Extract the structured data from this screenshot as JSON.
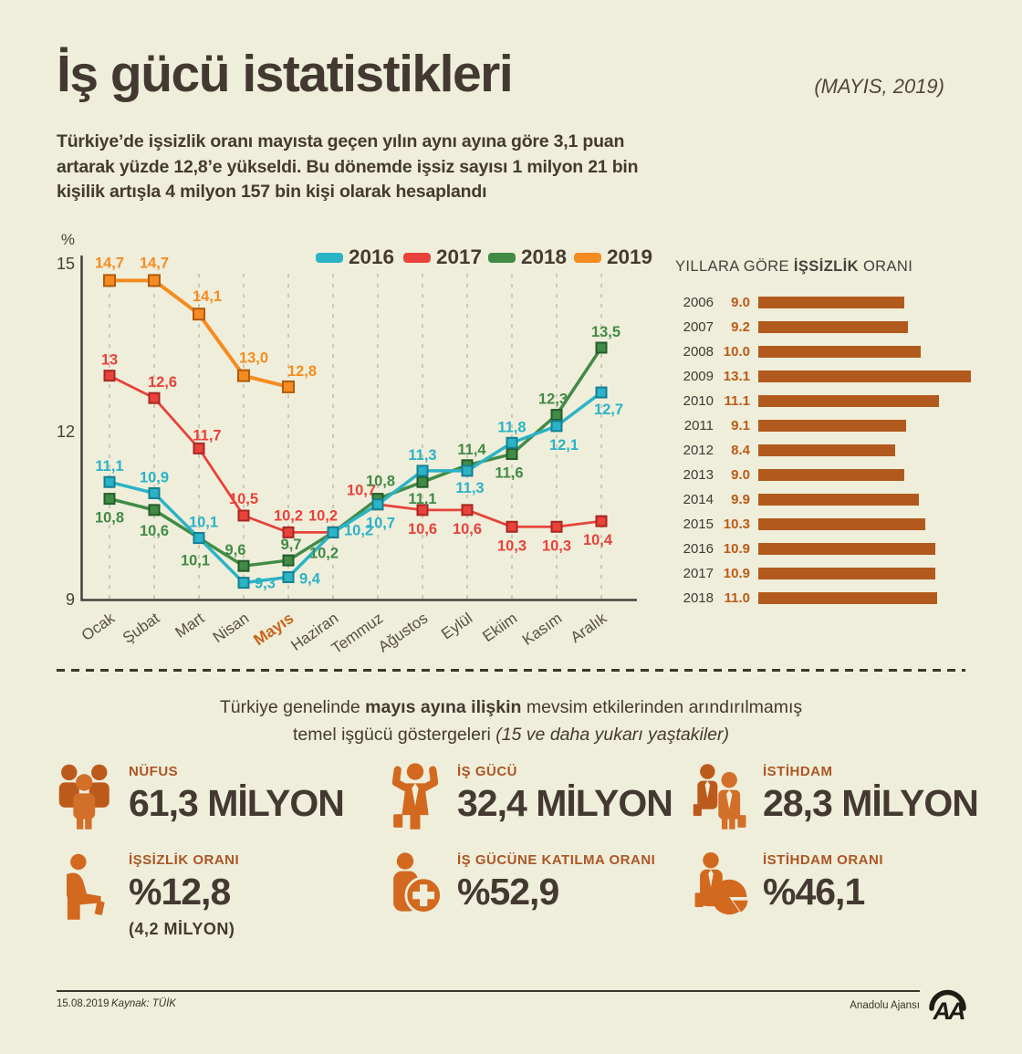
{
  "header": {
    "title": "İş gücü istatistikleri",
    "period": "(MAYIS, 2019)",
    "intro_lines": [
      "Türkiye’de işsizlik oranı mayısta geçen yılın aynı ayına göre 3,1 puan",
      "artarak yüzde 12,8’e yükseldi. Bu dönemde işsiz sayısı 1 milyon 21 bin",
      "kişilik artışla 4 milyon 157 bin kişi olarak hesaplandı"
    ]
  },
  "chart_data": [
    {
      "type": "line",
      "unit": "%",
      "ylim": [
        9,
        15
      ],
      "y_ticks": [
        15,
        12,
        9
      ],
      "grid": "vertical-dashed",
      "legend_position": "top",
      "x_labels": [
        "Ocak",
        "Şubat",
        "Mart",
        "Nisan",
        "Mayıs",
        "Haziran",
        "Temmuz",
        "Ağustos",
        "Eylül",
        "Ekiim",
        "Kasım",
        "Aralık"
      ],
      "highlight_x": "Mayıs",
      "series": [
        {
          "name": "2016",
          "color": "#2bb3c6",
          "marker_border": "#157f92",
          "values": [
            11.1,
            10.9,
            10.1,
            9.3,
            9.4,
            10.2,
            10.7,
            11.3,
            11.3,
            11.8,
            12.1,
            12.7
          ],
          "labels": [
            "11,1",
            "10,9",
            "10,1",
            "9,3",
            "9,4",
            "10,2",
            "10,7",
            "11,3",
            "11,3",
            "11,8",
            "12,1",
            "12,7"
          ]
        },
        {
          "name": "2017",
          "color": "#e8423a",
          "marker_border": "#a72721",
          "values": [
            13,
            12.6,
            11.7,
            10.5,
            10.2,
            10.2,
            10.7,
            10.6,
            10.6,
            10.3,
            10.3,
            10.4
          ],
          "labels": [
            "13",
            "12,6",
            "11,7",
            "10,5",
            "10,2",
            "10,2",
            "10,7",
            "10,6",
            "10,6",
            "10,3",
            "10,3",
            "10,4"
          ]
        },
        {
          "name": "2018",
          "color": "#418b46",
          "marker_border": "#245c2a",
          "values": [
            10.8,
            10.6,
            10.1,
            9.6,
            9.7,
            10.2,
            10.8,
            11.1,
            11.4,
            11.6,
            12.3,
            13.5
          ],
          "labels": [
            "10,8",
            "10,6",
            "10,1",
            "9,6",
            "9,7",
            "10,2",
            "10,8",
            "11,1",
            "11,4",
            "11,6",
            "12,3",
            "13,5"
          ]
        },
        {
          "name": "2019",
          "color": "#f68b20",
          "marker_border": "#b05b0d",
          "values": [
            14.7,
            14.7,
            14.1,
            13.0,
            12.8
          ],
          "labels": [
            "14,7",
            "14,7",
            "14,1",
            "13,0",
            "12,8"
          ]
        }
      ]
    },
    {
      "type": "bar",
      "title_prefix": "YILLARA GÖRE ",
      "title_bold": "İŞSİZLİK",
      "title_suffix": " ORANI",
      "categories": [
        "2006",
        "2007",
        "2008",
        "2009",
        "2010",
        "2011",
        "2012",
        "2013",
        "2014",
        "2015",
        "2016",
        "2017",
        "2018"
      ],
      "values": [
        9.0,
        9.2,
        10.0,
        13.1,
        11.1,
        9.1,
        8.4,
        9.0,
        9.9,
        10.3,
        10.9,
        10.9,
        11.0
      ],
      "value_labels": [
        "9.0",
        "9.2",
        "10.0",
        "13.1",
        "11.1",
        "9.1",
        "8.4",
        "9.0",
        "9.9",
        "10.3",
        "10.9",
        "10.9",
        "11.0"
      ],
      "bar_color": "#b25a1d",
      "value_color": "#bc5a16",
      "xlim": [
        0,
        14
      ]
    }
  ],
  "mid_section": {
    "line1_prefix": "Türkiye genelinde ",
    "line1_bold": "mayıs ayına ilişkin",
    "line1_suffix": " mevsim etkilerinden arındırılmamış",
    "line2_prefix": "temel işgücü göstergeleri ",
    "line2_italic": "(15 ve daha yukarı yaştakiler)"
  },
  "stats": [
    {
      "icon": "population-icon",
      "label": "NÜFUS",
      "value": "61,3 MİLYON"
    },
    {
      "icon": "labor-force-icon",
      "label": "İŞ GÜCÜ",
      "value": "32,4 MİLYON"
    },
    {
      "icon": "employment-icon",
      "label": "İSTİHDAM",
      "value": "28,3 MİLYON"
    },
    {
      "icon": "unemployment-rate-icon",
      "label": "İŞSİZLİK ORANI",
      "value": "%12,8",
      "note": "(4,2 MİLYON)"
    },
    {
      "icon": "participation-rate-icon",
      "label": "İŞ GÜCÜNE KATILMA ORANI",
      "value": "%52,9"
    },
    {
      "icon": "employment-rate-icon",
      "label": "İSTİHDAM ORANI",
      "value": "%46,1"
    }
  ],
  "footer": {
    "date": "15.08.2019",
    "source": "Kaynak: TÜİK",
    "agency": "Anadolu Ajansı",
    "logo_text": "AA"
  },
  "colors": {
    "background": "#efeedb",
    "ink": "#443930",
    "label_orange": "#ad5523",
    "icon_orange_dark": "#bc5a1c",
    "icon_orange_light": "#d2702a",
    "bar_orange": "#b25a1d"
  }
}
